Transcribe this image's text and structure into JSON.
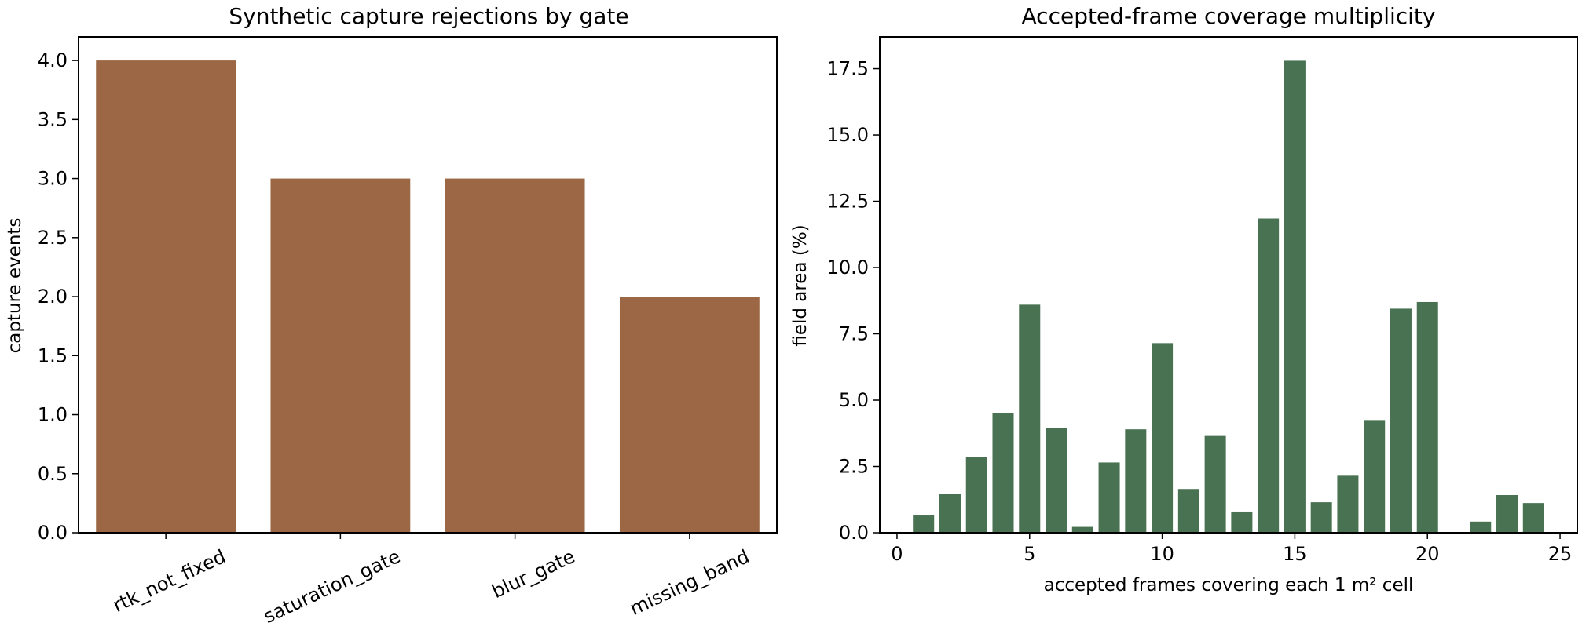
{
  "colors": {
    "left_bars": "#9b6744",
    "right_bars": "#487251",
    "axes": "#000000"
  },
  "chart_data": [
    {
      "type": "bar",
      "title": "Synthetic capture rejections by gate",
      "xlabel": "",
      "ylabel": "capture events",
      "categories": [
        "rtk_not_fixed",
        "saturation_gate",
        "blur_gate",
        "missing_band"
      ],
      "values": [
        4,
        3,
        3,
        2
      ],
      "ylim": [
        0,
        4.2
      ],
      "yticks": [
        0.0,
        0.5,
        1.0,
        1.5,
        2.0,
        2.5,
        3.0,
        3.5,
        4.0
      ],
      "ytick_labels": [
        "0.0",
        "0.5",
        "1.0",
        "1.5",
        "2.0",
        "2.5",
        "3.0",
        "3.5",
        "4.0"
      ],
      "grid": false
    },
    {
      "type": "bar",
      "title": "Accepted-frame coverage multiplicity",
      "xlabel": "accepted frames covering each 1 m² cell",
      "ylabel": "field area (%)",
      "x": [
        1,
        2,
        3,
        4,
        5,
        6,
        7,
        8,
        9,
        10,
        11,
        12,
        13,
        14,
        15,
        16,
        17,
        18,
        19,
        20,
        22,
        23,
        24
      ],
      "values": [
        0.65,
        1.45,
        2.85,
        4.5,
        8.6,
        3.95,
        0.22,
        2.65,
        3.9,
        7.15,
        1.65,
        3.65,
        0.8,
        11.85,
        17.8,
        1.15,
        2.15,
        4.25,
        8.45,
        8.7,
        0.42,
        1.42,
        1.12
      ],
      "xlim": [
        -0.65,
        25.65
      ],
      "ylim": [
        0,
        18.7
      ],
      "xticks": [
        0,
        5,
        10,
        15,
        20,
        25
      ],
      "xtick_labels": [
        "0",
        "5",
        "10",
        "15",
        "20",
        "25"
      ],
      "yticks": [
        0.0,
        2.5,
        5.0,
        7.5,
        10.0,
        12.5,
        15.0,
        17.5
      ],
      "ytick_labels": [
        "0.0",
        "2.5",
        "5.0",
        "7.5",
        "10.0",
        "12.5",
        "15.0",
        "17.5"
      ],
      "grid": false
    }
  ]
}
